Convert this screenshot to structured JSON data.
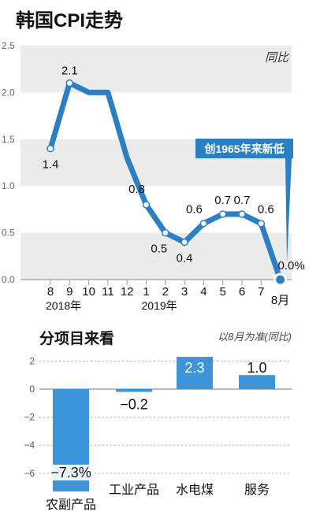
{
  "chart_data": [
    {
      "type": "line",
      "title": "韩国CPI走势",
      "unit_note": "同比",
      "ylim": [
        0,
        2.5
      ],
      "yticks": [
        "2.5",
        "2.0",
        "1.5",
        "1.0",
        "0.5",
        "0.0"
      ],
      "ytick_values": [
        2.5,
        2.0,
        1.5,
        1.0,
        0.5,
        0.0
      ],
      "grid": true,
      "categories": [
        "8",
        "9",
        "10",
        "11",
        "12",
        "1",
        "2",
        "3",
        "4",
        "5",
        "6",
        "7",
        "8月"
      ],
      "year_labels": [
        "2018年",
        "2019年"
      ],
      "values": [
        1.4,
        2.1,
        2.0,
        2.0,
        1.3,
        0.8,
        0.5,
        0.4,
        0.6,
        0.7,
        0.7,
        0.6,
        0.0
      ],
      "data_labels": [
        "1.4",
        "2.1",
        "",
        "",
        "",
        "0.8",
        "0.5",
        "0.4",
        "0.6",
        "0.7",
        "0.7",
        "0.6",
        "0.0%"
      ],
      "annotation": "创1965年来新低",
      "color": "#2b7fc5"
    },
    {
      "type": "bar",
      "title": "分项目来看",
      "unit_note": "以8月为准(同比)",
      "ylim": [
        -7.5,
        2.5
      ],
      "yticks": [
        "2",
        "0",
        "−2",
        "−4",
        "−6"
      ],
      "ytick_values": [
        2,
        0,
        -2,
        -4,
        -6
      ],
      "categories": [
        "农副产品",
        "工业产品",
        "水电煤",
        "服务"
      ],
      "values": [
        -7.3,
        -0.2,
        2.3,
        1.0
      ],
      "data_labels": [
        "−7.3%",
        "−0.2",
        "2.3",
        "1.0"
      ],
      "color": "#3b95d8"
    }
  ]
}
